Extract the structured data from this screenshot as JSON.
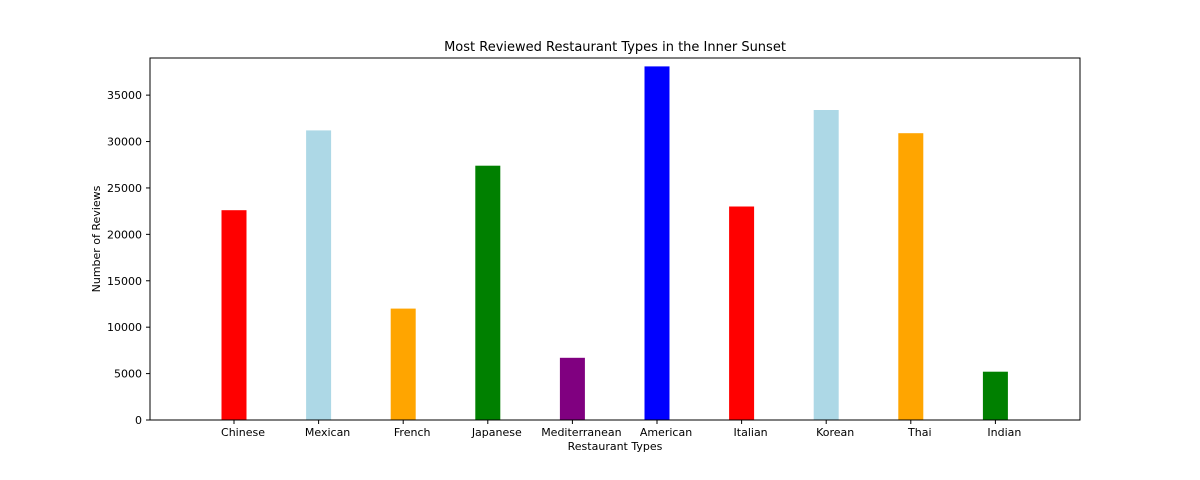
{
  "chart_data": {
    "type": "bar",
    "title": "Most Reviewed Restaurant Types in the Inner Sunset",
    "xlabel": "Restaurant Types",
    "ylabel": "Number of Reviews",
    "categories": [
      "Chinese",
      "Mexican",
      "French",
      "Japanese",
      "Mediterranean",
      "American",
      "Italian",
      "Korean",
      "Thai",
      "Indian"
    ],
    "values": [
      22600,
      31200,
      12000,
      27400,
      6700,
      38100,
      23000,
      33400,
      30900,
      5200
    ],
    "colors": [
      "#ff0000",
      "#add8e6",
      "#ffa500",
      "#008000",
      "#800080",
      "#0000ff",
      "#ff0000",
      "#add8e6",
      "#ffa500",
      "#008000"
    ],
    "ylim": [
      0,
      39000
    ],
    "yticks": [
      0,
      5000,
      10000,
      15000,
      20000,
      25000,
      30000,
      35000
    ],
    "grid": false,
    "legend": "none"
  }
}
